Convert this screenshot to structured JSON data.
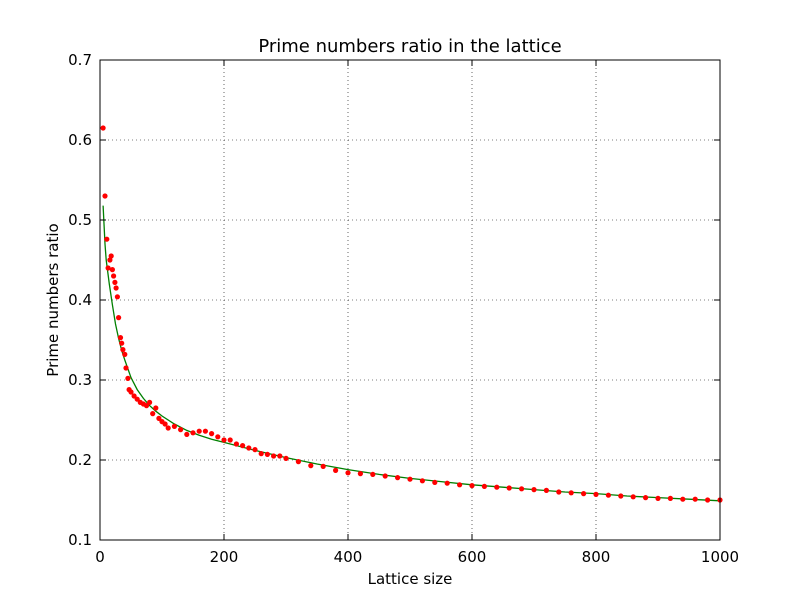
{
  "chart_data": {
    "type": "scatter",
    "title": "Prime numbers ratio in the lattice",
    "xlabel": "Lattice size",
    "ylabel": "Prime numbers ratio",
    "xlim": [
      0,
      1000
    ],
    "ylim": [
      0.1,
      0.7
    ],
    "xticks": [
      0,
      200,
      400,
      600,
      800,
      1000
    ],
    "xtick_labels": [
      "0",
      "200",
      "400",
      "600",
      "800",
      "1000"
    ],
    "yticks": [
      0.1,
      0.2,
      0.3,
      0.4,
      0.5,
      0.6,
      0.7
    ],
    "ytick_labels": [
      "0.1",
      "0.2",
      "0.3",
      "0.4",
      "0.5",
      "0.6",
      "0.7"
    ],
    "grid": true,
    "series": [
      {
        "kind": "points",
        "color": "#ff0000",
        "x": [
          5,
          8,
          11,
          13,
          16,
          18,
          20,
          22,
          24,
          26,
          28,
          30,
          33,
          35,
          37,
          40,
          42,
          45,
          47,
          50,
          55,
          60,
          65,
          70,
          75,
          80,
          85,
          90,
          95,
          100,
          105,
          110,
          120,
          130,
          140,
          150,
          160,
          170,
          180,
          190,
          200,
          210,
          220,
          230,
          240,
          250,
          260,
          270,
          280,
          290,
          300,
          320,
          340,
          360,
          380,
          400,
          420,
          440,
          460,
          480,
          500,
          520,
          540,
          560,
          580,
          600,
          620,
          640,
          660,
          680,
          700,
          720,
          740,
          760,
          780,
          800,
          820,
          840,
          860,
          880,
          900,
          920,
          940,
          960,
          980,
          1000
        ],
        "y": [
          0.615,
          0.53,
          0.476,
          0.44,
          0.45,
          0.455,
          0.438,
          0.43,
          0.422,
          0.415,
          0.404,
          0.378,
          0.353,
          0.346,
          0.338,
          0.332,
          0.315,
          0.302,
          0.288,
          0.285,
          0.28,
          0.276,
          0.272,
          0.27,
          0.268,
          0.272,
          0.258,
          0.265,
          0.252,
          0.248,
          0.245,
          0.24,
          0.242,
          0.238,
          0.232,
          0.234,
          0.236,
          0.236,
          0.233,
          0.229,
          0.225,
          0.225,
          0.22,
          0.218,
          0.215,
          0.213,
          0.208,
          0.207,
          0.205,
          0.205,
          0.202,
          0.198,
          0.193,
          0.192,
          0.187,
          0.184,
          0.183,
          0.182,
          0.18,
          0.178,
          0.176,
          0.174,
          0.172,
          0.171,
          0.169,
          0.168,
          0.167,
          0.166,
          0.165,
          0.164,
          0.163,
          0.162,
          0.16,
          0.159,
          0.158,
          0.157,
          0.156,
          0.155,
          0.154,
          0.153,
          0.152,
          0.152,
          0.151,
          0.151,
          0.15,
          0.15
        ]
      },
      {
        "kind": "line",
        "color": "#008000",
        "x": [
          5,
          8,
          10,
          15,
          20,
          25,
          30,
          35,
          40,
          50,
          60,
          70,
          80,
          90,
          100,
          120,
          140,
          160,
          180,
          200,
          250,
          300,
          350,
          400,
          450,
          500,
          550,
          600,
          650,
          700,
          750,
          800,
          850,
          900,
          950,
          1000
        ],
        "y": [
          0.518,
          0.47,
          0.45,
          0.42,
          0.394,
          0.37,
          0.352,
          0.337,
          0.325,
          0.303,
          0.288,
          0.277,
          0.268,
          0.261,
          0.255,
          0.245,
          0.237,
          0.231,
          0.226,
          0.222,
          0.212,
          0.203,
          0.195,
          0.188,
          0.182,
          0.177,
          0.173,
          0.169,
          0.166,
          0.163,
          0.16,
          0.158,
          0.155,
          0.153,
          0.151,
          0.149
        ]
      }
    ]
  }
}
